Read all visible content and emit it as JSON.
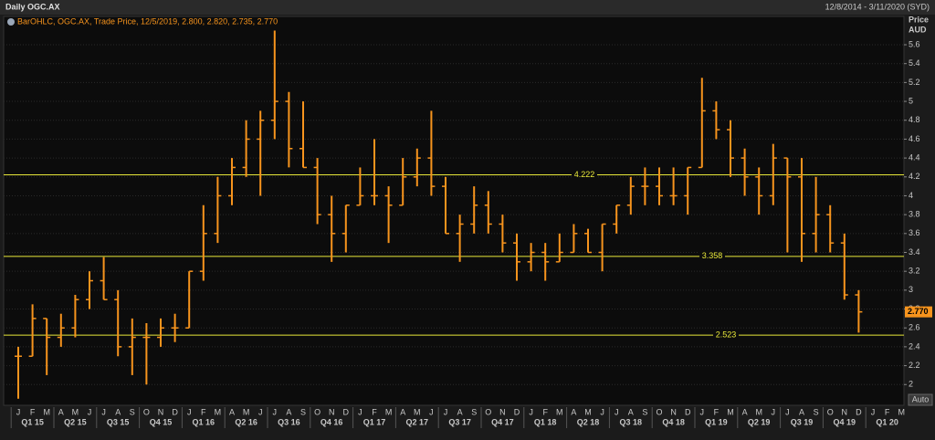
{
  "chart_data": {
    "type": "ohlc",
    "header": "Daily OGC.AX",
    "date_range": "12/8/2014 - 3/11/2020 (SYD)",
    "title": "BarOHLC, OGC.AX, Trade Price, 12/5/2019, 2.800, 2.820, 2.735, 2.770",
    "y_label": "Price",
    "y_unit": "AUD",
    "button": "Auto",
    "color": "#f7941d",
    "level_color": "#e8e83a",
    "grid": true,
    "categories": [
      "J",
      "F",
      "M",
      "A",
      "M",
      "J",
      "J",
      "A",
      "S",
      "O",
      "N",
      "D",
      "J",
      "F",
      "M",
      "A",
      "M",
      "J",
      "J",
      "A",
      "S",
      "O",
      "N",
      "D",
      "J",
      "F",
      "M",
      "A",
      "M",
      "J",
      "J",
      "A",
      "S",
      "O",
      "N",
      "D",
      "J",
      "F",
      "M",
      "A",
      "M",
      "J",
      "J",
      "A",
      "S",
      "O",
      "N",
      "D",
      "J",
      "F",
      "M",
      "A",
      "M",
      "J",
      "J",
      "A",
      "S",
      "O",
      "N",
      "D",
      "J",
      "F",
      "M"
    ],
    "quarters": [
      "Q1 15",
      "Q2 15",
      "Q3 15",
      "Q4 15",
      "Q1 16",
      "Q2 16",
      "Q3 16",
      "Q4 16",
      "Q1 17",
      "Q2 17",
      "Q3 17",
      "Q4 17",
      "Q1 18",
      "Q2 18",
      "Q3 18",
      "Q4 18",
      "Q1 19",
      "Q2 19",
      "Q3 19",
      "Q4 19",
      "Q1 20"
    ],
    "open": [
      2.3,
      2.3,
      2.7,
      2.5,
      2.6,
      2.9,
      3.1,
      2.9,
      2.4,
      2.5,
      2.5,
      2.6,
      2.6,
      3.2,
      3.6,
      4.0,
      4.3,
      4.6,
      4.8,
      5.0,
      4.5,
      4.3,
      3.8,
      3.6,
      3.9,
      4.0,
      4.0,
      3.9,
      4.2,
      4.4,
      4.1,
      3.6,
      3.7,
      3.9,
      3.7,
      3.5,
      3.3,
      3.4,
      3.3,
      3.4,
      3.6,
      3.4,
      3.7,
      3.9,
      4.1,
      4.1,
      4.0,
      4.0,
      4.3,
      4.9,
      4.7,
      4.4,
      4.2,
      4.0,
      4.4,
      4.2,
      3.6,
      3.8,
      3.5,
      2.95,
      null,
      null,
      null
    ],
    "high": [
      2.4,
      2.85,
      2.7,
      2.75,
      2.95,
      3.2,
      3.35,
      3.0,
      2.7,
      2.65,
      2.7,
      2.75,
      3.2,
      3.9,
      4.2,
      4.4,
      4.8,
      4.9,
      5.75,
      5.1,
      5.0,
      4.4,
      4.0,
      3.9,
      4.3,
      4.6,
      4.1,
      4.4,
      4.5,
      4.9,
      4.2,
      3.8,
      4.1,
      4.05,
      3.8,
      3.6,
      3.5,
      3.5,
      3.6,
      3.7,
      3.65,
      3.7,
      3.9,
      4.2,
      4.3,
      4.3,
      4.3,
      4.3,
      5.25,
      5.0,
      4.8,
      4.5,
      4.3,
      4.55,
      4.4,
      4.4,
      4.2,
      3.9,
      3.6,
      3.0,
      null,
      null,
      null
    ],
    "low": [
      1.85,
      2.3,
      2.1,
      2.4,
      2.5,
      2.8,
      2.9,
      2.3,
      2.1,
      2.0,
      2.4,
      2.45,
      2.6,
      3.1,
      3.5,
      3.9,
      4.2,
      4.0,
      4.6,
      4.3,
      4.3,
      3.7,
      3.3,
      3.4,
      3.9,
      3.9,
      3.5,
      3.9,
      4.1,
      4.0,
      3.6,
      3.3,
      3.6,
      3.6,
      3.4,
      3.1,
      3.2,
      3.1,
      3.3,
      3.4,
      3.4,
      3.2,
      3.6,
      3.8,
      3.9,
      3.9,
      3.9,
      3.8,
      4.3,
      4.6,
      4.2,
      4.0,
      3.8,
      3.9,
      3.4,
      3.3,
      3.4,
      3.4,
      2.9,
      2.55,
      null,
      null,
      null
    ],
    "close": [
      2.3,
      2.7,
      2.5,
      2.6,
      2.9,
      3.1,
      2.9,
      2.4,
      2.5,
      2.5,
      2.6,
      2.6,
      3.2,
      3.6,
      4.0,
      4.3,
      4.6,
      4.8,
      5.0,
      4.5,
      4.3,
      3.8,
      3.6,
      3.9,
      4.0,
      4.0,
      3.9,
      4.2,
      4.4,
      4.1,
      3.6,
      3.7,
      3.9,
      3.7,
      3.5,
      3.3,
      3.4,
      3.3,
      3.4,
      3.6,
      3.4,
      3.7,
      3.9,
      4.1,
      4.1,
      4.0,
      4.0,
      4.3,
      4.9,
      4.7,
      4.4,
      4.2,
      4.0,
      4.4,
      4.2,
      3.6,
      3.8,
      3.5,
      2.95,
      2.77,
      null,
      null,
      null
    ],
    "levels": [
      4.222,
      3.358,
      2.523
    ],
    "last_price": {
      "value": 2.77,
      "label": "2.770"
    },
    "ylim": [
      1.78,
      5.9
    ],
    "yticks": [
      2,
      2.2,
      2.4,
      2.6,
      2.8,
      3,
      3.2,
      3.4,
      3.6,
      3.8,
      4,
      4.2,
      4.4,
      4.6,
      4.8,
      5,
      5.2,
      5.4,
      5.6
    ]
  }
}
